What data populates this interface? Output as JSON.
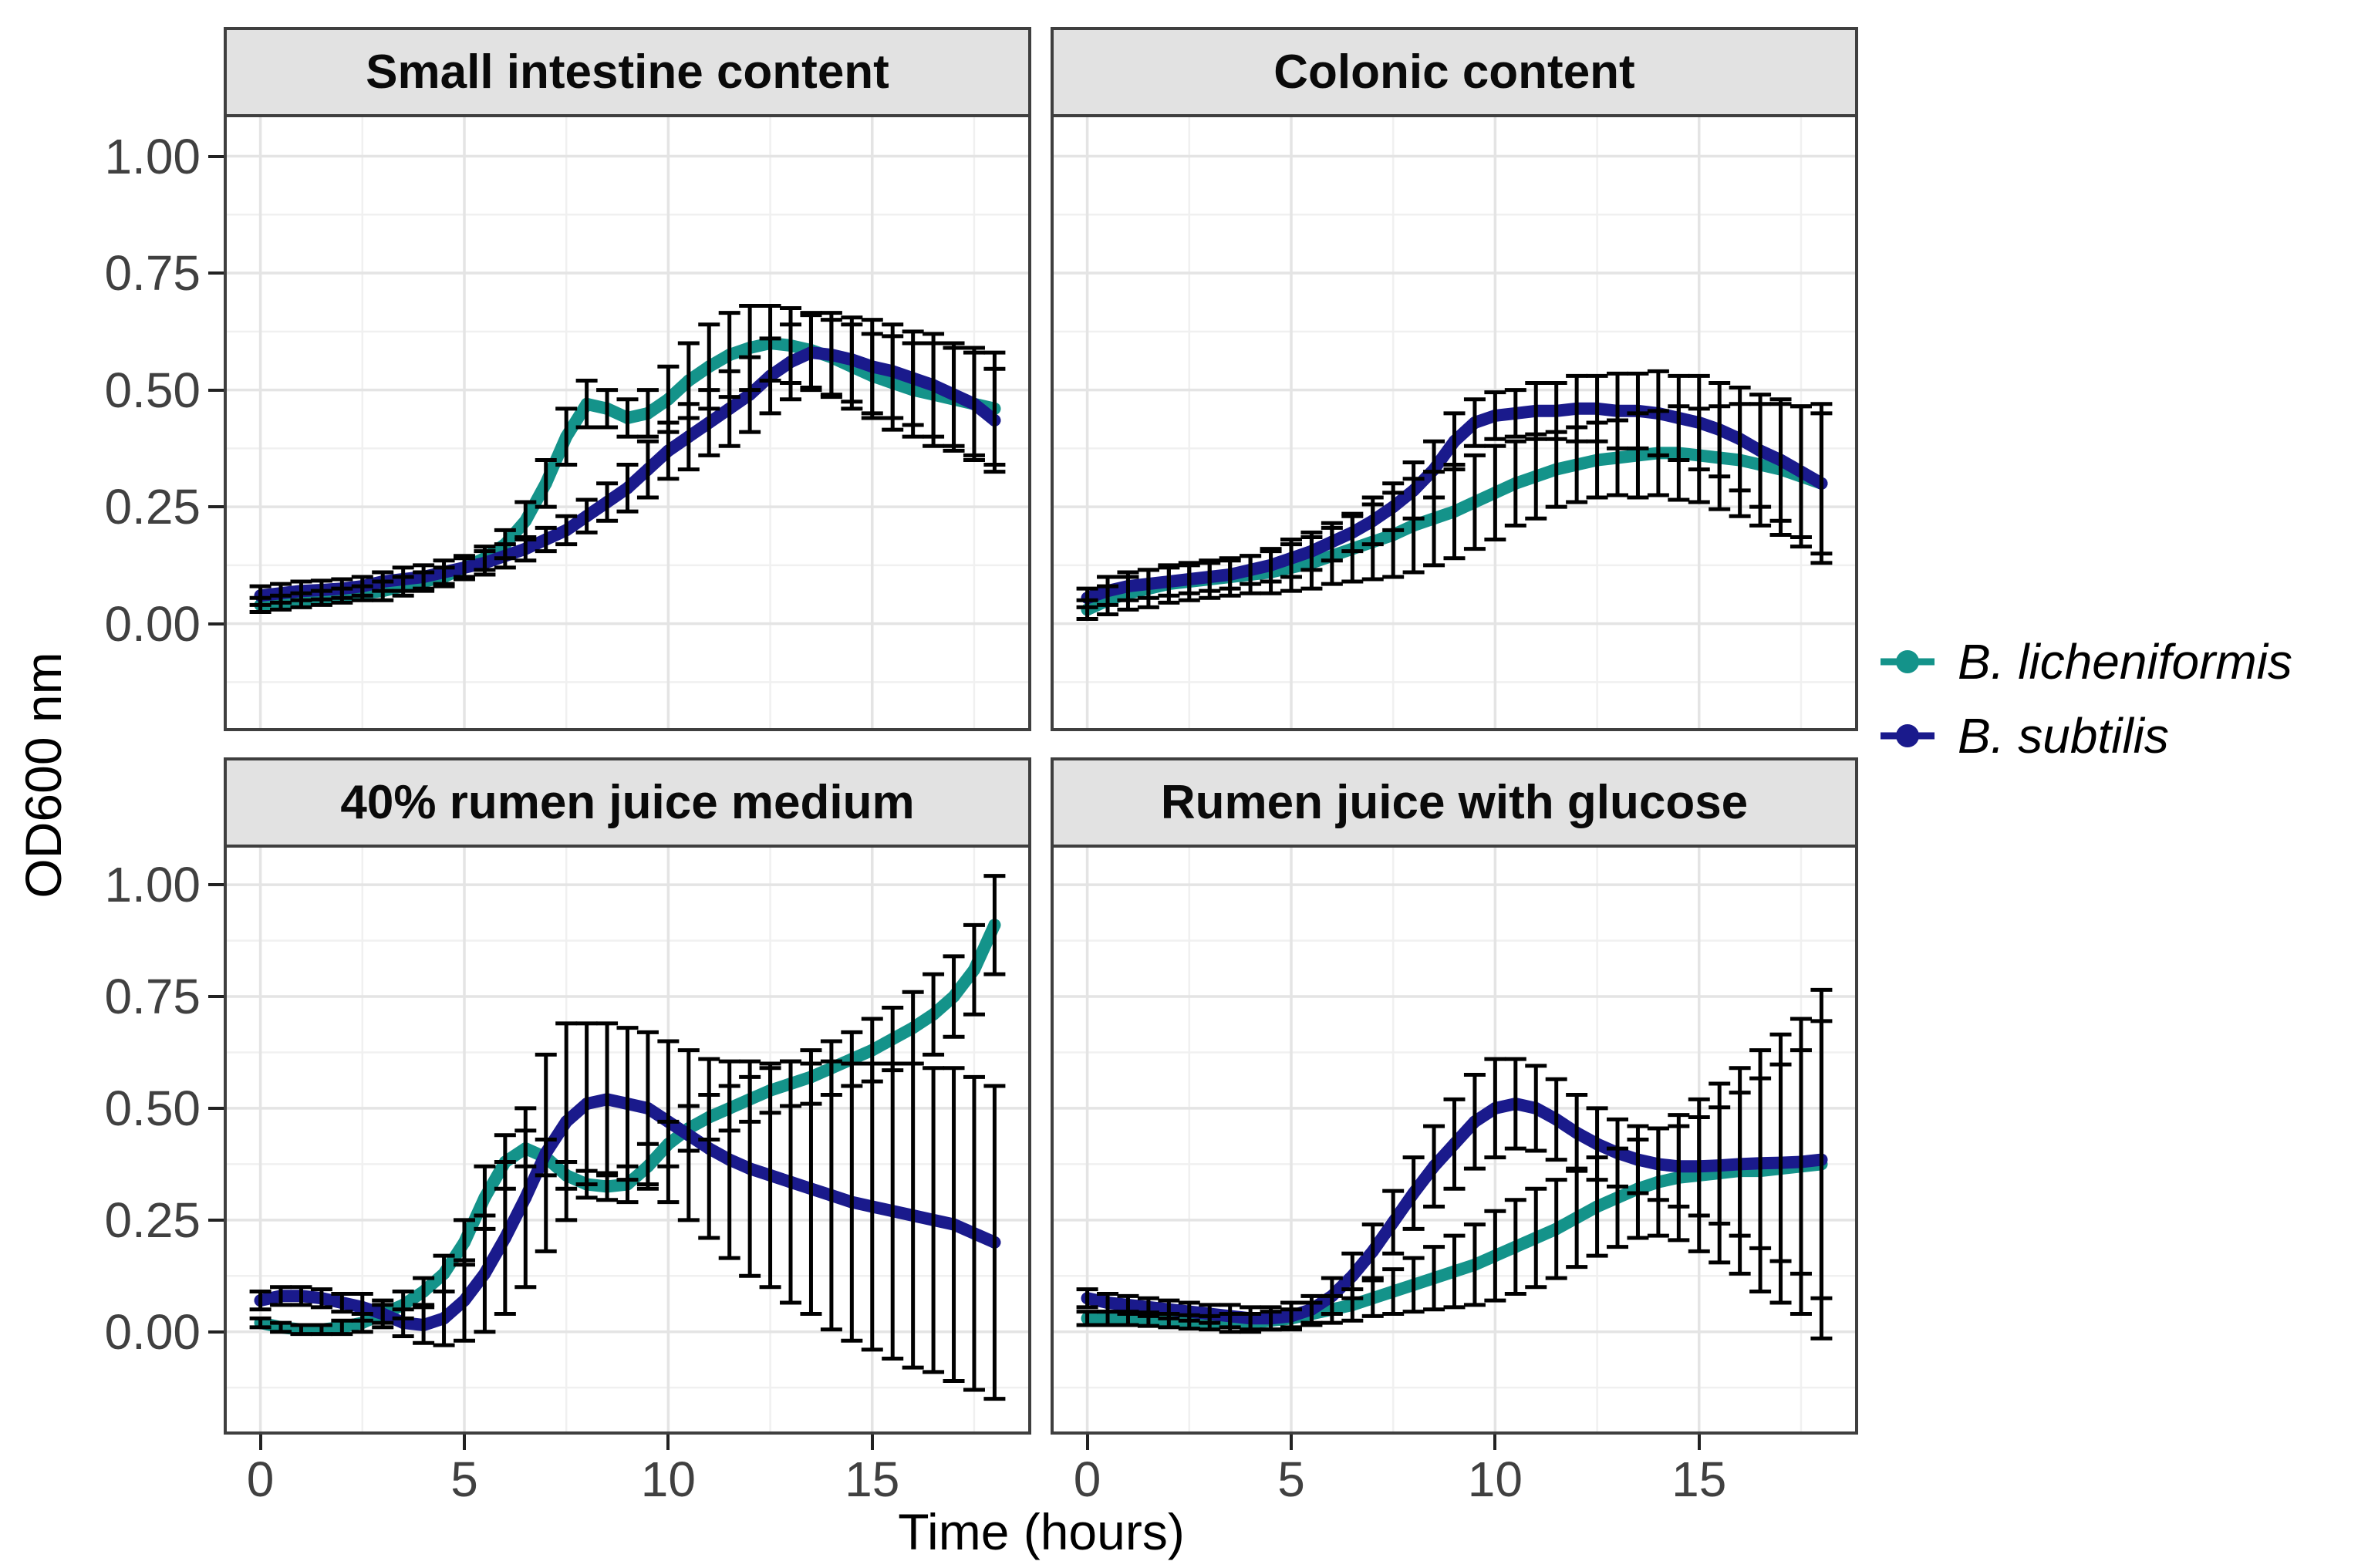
{
  "figure": {
    "y_axis_title": "OD600 nm",
    "x_axis_title": "Time (hours)",
    "y_tick_labels": [
      "1.00",
      "0.75",
      "0.50",
      "0.25",
      "0.00"
    ],
    "y_tick_values": [
      1.0,
      0.75,
      0.5,
      0.25,
      0.0
    ],
    "x_tick_labels": [
      "0",
      "5",
      "10",
      "15"
    ],
    "x_tick_values": [
      0,
      5,
      10,
      15
    ],
    "panel_background": "#ffffff",
    "strip_background": "#E2E2E2",
    "border_color": "#3f3f3f",
    "grid_major_color": "#E4E4E4",
    "grid_minor_color": "#F0F0F0",
    "errorbar_color": "#000000"
  },
  "legend": {
    "items": [
      {
        "label": "B. licheniformis",
        "color": "#14938A"
      },
      {
        "label": "B. subtilis",
        "color": "#1A1A8C"
      }
    ]
  },
  "chart_data": {
    "type": "line",
    "title": "",
    "xlabel": "Time (hours)",
    "ylabel": "OD600 nm",
    "xlim": [
      -0.9,
      18.9
    ],
    "ylim": [
      -0.23,
      1.09
    ],
    "x_major_gridlines": [
      0,
      5,
      10,
      15
    ],
    "x_minor_gridlines": [
      2.5,
      7.5,
      12.5,
      17.5
    ],
    "y_major_gridlines": [
      0,
      0.25,
      0.5,
      0.75,
      1.0
    ],
    "y_minor_gridlines": [
      -0.125,
      0.125,
      0.375,
      0.625,
      0.875
    ],
    "x_start": 0,
    "x_step": 0.5,
    "error_bars": true,
    "legend_position": "right",
    "panels": [
      {
        "title": "Small intestine content",
        "series": [
          {
            "name": "B. licheniformis",
            "color": "#14938A",
            "values": [
              0.04,
              0.045,
              0.05,
              0.055,
              0.06,
              0.065,
              0.07,
              0.08,
              0.09,
              0.1,
              0.12,
              0.14,
              0.17,
              0.22,
              0.3,
              0.4,
              0.47,
              0.46,
              0.44,
              0.45,
              0.48,
              0.52,
              0.55,
              0.575,
              0.59,
              0.6,
              0.595,
              0.585,
              0.57,
              0.55,
              0.53,
              0.515,
              0.5,
              0.49,
              0.48,
              0.47,
              0.46
            ],
            "err": [
              0.015,
              0.015,
              0.015,
              0.015,
              0.015,
              0.015,
              0.02,
              0.02,
              0.02,
              0.02,
              0.02,
              0.025,
              0.03,
              0.04,
              0.05,
              0.06,
              0.05,
              0.04,
              0.04,
              0.05,
              0.07,
              0.08,
              0.09,
              0.09,
              0.09,
              0.08,
              0.08,
              0.08,
              0.08,
              0.09,
              0.09,
              0.1,
              0.1,
              0.11,
              0.11,
              0.12,
              0.12
            ]
          },
          {
            "name": "B. subtilis",
            "color": "#1A1A8C",
            "values": [
              0.06,
              0.065,
              0.07,
              0.072,
              0.075,
              0.08,
              0.09,
              0.095,
              0.1,
              0.11,
              0.12,
              0.13,
              0.145,
              0.16,
              0.18,
              0.2,
              0.23,
              0.26,
              0.29,
              0.33,
              0.37,
              0.4,
              0.43,
              0.46,
              0.49,
              0.53,
              0.56,
              0.58,
              0.575,
              0.565,
              0.55,
              0.54,
              0.525,
              0.51,
              0.49,
              0.47,
              0.435
            ],
            "err": [
              0.02,
              0.02,
              0.02,
              0.02,
              0.02,
              0.02,
              0.02,
              0.025,
              0.025,
              0.025,
              0.025,
              0.025,
              0.025,
              0.025,
              0.025,
              0.03,
              0.035,
              0.04,
              0.05,
              0.06,
              0.06,
              0.07,
              0.07,
              0.08,
              0.08,
              0.08,
              0.08,
              0.08,
              0.09,
              0.09,
              0.1,
              0.1,
              0.1,
              0.11,
              0.11,
              0.11,
              0.11
            ]
          }
        ]
      },
      {
        "title": "Colonic content",
        "series": [
          {
            "name": "B. licheniformis",
            "color": "#14938A",
            "values": [
              0.03,
              0.05,
              0.065,
              0.075,
              0.085,
              0.09,
              0.095,
              0.1,
              0.105,
              0.11,
              0.12,
              0.13,
              0.145,
              0.16,
              0.175,
              0.19,
              0.21,
              0.225,
              0.24,
              0.26,
              0.28,
              0.3,
              0.315,
              0.33,
              0.34,
              0.35,
              0.355,
              0.36,
              0.365,
              0.365,
              0.36,
              0.355,
              0.35,
              0.34,
              0.33,
              0.315,
              0.3
            ],
            "err": [
              0.02,
              0.03,
              0.035,
              0.04,
              0.04,
              0.04,
              0.04,
              0.04,
              0.04,
              0.045,
              0.05,
              0.055,
              0.06,
              0.07,
              0.08,
              0.09,
              0.1,
              0.1,
              0.1,
              0.1,
              0.1,
              0.09,
              0.09,
              0.08,
              0.08,
              0.08,
              0.08,
              0.09,
              0.09,
              0.1,
              0.1,
              0.11,
              0.12,
              0.13,
              0.14,
              0.15,
              0.17
            ]
          },
          {
            "name": "B. subtilis",
            "color": "#1A1A8C",
            "values": [
              0.055,
              0.07,
              0.08,
              0.085,
              0.09,
              0.095,
              0.1,
              0.105,
              0.115,
              0.125,
              0.14,
              0.155,
              0.175,
              0.195,
              0.22,
              0.25,
              0.285,
              0.33,
              0.39,
              0.43,
              0.445,
              0.45,
              0.455,
              0.455,
              0.46,
              0.46,
              0.455,
              0.455,
              0.45,
              0.44,
              0.43,
              0.415,
              0.395,
              0.37,
              0.35,
              0.325,
              0.3
            ],
            "err": [
              0.02,
              0.03,
              0.03,
              0.03,
              0.03,
              0.03,
              0.03,
              0.03,
              0.03,
              0.035,
              0.04,
              0.04,
              0.04,
              0.04,
              0.05,
              0.05,
              0.06,
              0.06,
              0.06,
              0.05,
              0.05,
              0.05,
              0.06,
              0.06,
              0.07,
              0.07,
              0.08,
              0.08,
              0.09,
              0.09,
              0.1,
              0.1,
              0.11,
              0.12,
              0.13,
              0.14,
              0.15
            ]
          }
        ]
      },
      {
        "title": "40% rumen juice medium",
        "series": [
          {
            "name": "B. licheniformis",
            "color": "#14938A",
            "values": [
              0.02,
              0.01,
              0.005,
              0.005,
              0.01,
              0.02,
              0.04,
              0.06,
              0.09,
              0.13,
              0.2,
              0.3,
              0.38,
              0.41,
              0.39,
              0.35,
              0.33,
              0.325,
              0.33,
              0.37,
              0.42,
              0.455,
              0.48,
              0.5,
              0.52,
              0.54,
              0.555,
              0.57,
              0.59,
              0.61,
              0.63,
              0.655,
              0.68,
              0.71,
              0.75,
              0.81,
              0.91
            ],
            "err": [
              0.01,
              0.01,
              0.01,
              0.01,
              0.015,
              0.02,
              0.02,
              0.03,
              0.03,
              0.04,
              0.05,
              0.07,
              0.06,
              0.04,
              0.04,
              0.03,
              0.03,
              0.03,
              0.04,
              0.05,
              0.05,
              0.05,
              0.05,
              0.05,
              0.05,
              0.05,
              0.05,
              0.06,
              0.06,
              0.06,
              0.07,
              0.07,
              0.08,
              0.09,
              0.09,
              0.1,
              0.11
            ]
          },
          {
            "name": "B. subtilis",
            "color": "#1A1A8C",
            "values": [
              0.07,
              0.08,
              0.08,
              0.075,
              0.065,
              0.055,
              0.04,
              0.02,
              0.015,
              0.03,
              0.07,
              0.13,
              0.21,
              0.3,
              0.4,
              0.47,
              0.51,
              0.52,
              0.51,
              0.5,
              0.47,
              0.44,
              0.41,
              0.385,
              0.365,
              0.35,
              0.335,
              0.32,
              0.305,
              0.29,
              0.28,
              0.27,
              0.26,
              0.25,
              0.24,
              0.22,
              0.2
            ],
            "err": [
              0.02,
              0.02,
              0.02,
              0.02,
              0.02,
              0.03,
              0.03,
              0.03,
              0.04,
              0.06,
              0.09,
              0.13,
              0.17,
              0.2,
              0.22,
              0.22,
              0.18,
              0.17,
              0.17,
              0.17,
              0.18,
              0.19,
              0.2,
              0.22,
              0.24,
              0.25,
              0.27,
              0.28,
              0.3,
              0.31,
              0.32,
              0.33,
              0.34,
              0.34,
              0.35,
              0.35,
              0.35
            ]
          }
        ]
      },
      {
        "title": "Rumen juice with glucose",
        "series": [
          {
            "name": "B. licheniformis",
            "color": "#14938A",
            "values": [
              0.03,
              0.03,
              0.03,
              0.028,
              0.025,
              0.022,
              0.02,
              0.02,
              0.02,
              0.025,
              0.03,
              0.04,
              0.05,
              0.06,
              0.075,
              0.09,
              0.105,
              0.12,
              0.135,
              0.15,
              0.17,
              0.19,
              0.21,
              0.23,
              0.255,
              0.28,
              0.3,
              0.32,
              0.335,
              0.345,
              0.35,
              0.355,
              0.36,
              0.36,
              0.365,
              0.37,
              0.375
            ],
            "err": [
              0.015,
              0.015,
              0.015,
              0.015,
              0.015,
              0.015,
              0.015,
              0.02,
              0.02,
              0.02,
              0.02,
              0.025,
              0.03,
              0.035,
              0.04,
              0.05,
              0.06,
              0.07,
              0.08,
              0.09,
              0.1,
              0.105,
              0.11,
              0.11,
              0.11,
              0.11,
              0.11,
              0.11,
              0.12,
              0.14,
              0.17,
              0.2,
              0.23,
              0.27,
              0.3,
              0.33,
              0.39
            ]
          },
          {
            "name": "B. subtilis",
            "color": "#1A1A8C",
            "values": [
              0.075,
              0.065,
              0.06,
              0.055,
              0.05,
              0.045,
              0.04,
              0.035,
              0.03,
              0.03,
              0.035,
              0.05,
              0.08,
              0.125,
              0.18,
              0.245,
              0.31,
              0.37,
              0.42,
              0.47,
              0.5,
              0.51,
              0.5,
              0.475,
              0.445,
              0.42,
              0.4,
              0.385,
              0.375,
              0.37,
              0.37,
              0.372,
              0.375,
              0.377,
              0.378,
              0.38,
              0.385
            ],
            "err": [
              0.02,
              0.02,
              0.02,
              0.02,
              0.02,
              0.02,
              0.02,
              0.025,
              0.025,
              0.025,
              0.03,
              0.03,
              0.04,
              0.05,
              0.06,
              0.07,
              0.08,
              0.09,
              0.1,
              0.105,
              0.11,
              0.1,
              0.095,
              0.09,
              0.085,
              0.08,
              0.075,
              0.075,
              0.08,
              0.09,
              0.11,
              0.13,
              0.16,
              0.19,
              0.22,
              0.25,
              0.31
            ]
          }
        ]
      }
    ]
  }
}
